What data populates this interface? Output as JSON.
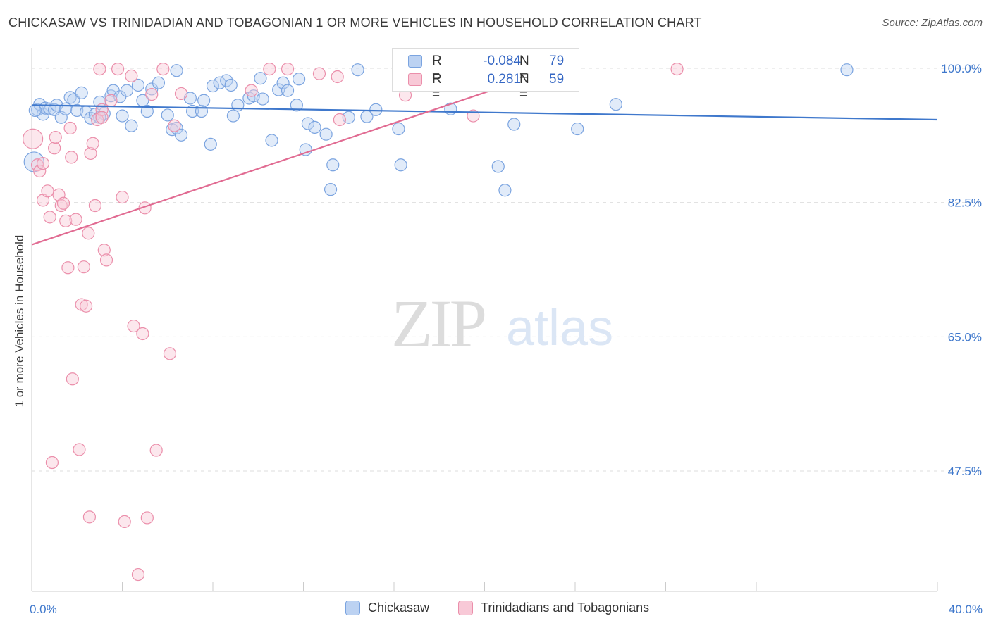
{
  "title": "CHICKASAW VS TRINIDADIAN AND TOBAGONIAN 1 OR MORE VEHICLES IN HOUSEHOLD CORRELATION CHART",
  "source": "Source: ZipAtlas.com",
  "watermark": {
    "zip": "ZIP",
    "atlas": "atlas"
  },
  "legend_stats": [
    {
      "r_label": "R =",
      "r_value": "-0.084",
      "n_label": "N =",
      "n_value": "79",
      "color": "#7ba4e0",
      "fill": "#bcd2f2"
    },
    {
      "r_label": "R =",
      "r_value": "0.281",
      "n_label": "N =",
      "n_value": "59",
      "color": "#eb8fab",
      "fill": "#f8c9d7"
    }
  ],
  "bottom_legend": [
    {
      "label": "Chickasaw",
      "color": "#7ba4e0",
      "fill": "#bcd2f2"
    },
    {
      "label": "Trinidadians and Tobagonians",
      "color": "#eb8fab",
      "fill": "#f8c9d7"
    }
  ],
  "chart_data": {
    "type": "scatter",
    "title": "CHICKASAW VS TRINIDADIAN AND TOBAGONIAN 1 OR MORE VEHICLES IN HOUSEHOLD CORRELATION CHART",
    "xlabel": "",
    "ylabel": "1 or more Vehicles in Household",
    "xlim": [
      0,
      40
    ],
    "ylim": [
      32,
      102.5
    ],
    "x_tick_labels": [
      {
        "value": 0,
        "label": "0.0%"
      },
      {
        "value": 40,
        "label": "40.0%"
      }
    ],
    "y_tick_labels": [
      {
        "value": 100,
        "label": "100.0%"
      },
      {
        "value": 82.5,
        "label": "82.5%"
      },
      {
        "value": 65,
        "label": "65.0%"
      },
      {
        "value": 47.5,
        "label": "47.5%"
      }
    ],
    "series": [
      {
        "name": "Chickasaw",
        "color": "#3f78cc",
        "point_stroke": "#7ba4e0",
        "point_fill": "#bcd2f2",
        "trendline": {
          "x": [
            0,
            40
          ],
          "y": [
            95.2,
            93.3
          ]
        },
        "points": [
          [
            0.1,
            87.8
          ],
          [
            0.25,
            94.6
          ],
          [
            0.35,
            95.3
          ],
          [
            0.5,
            94.0
          ],
          [
            0.6,
            94.8
          ],
          [
            0.8,
            94.7
          ],
          [
            1.0,
            94.6
          ],
          [
            1.1,
            95.2
          ],
          [
            1.3,
            93.6
          ],
          [
            1.5,
            94.7
          ],
          [
            1.7,
            96.2
          ],
          [
            1.85,
            95.9
          ],
          [
            2.0,
            94.5
          ],
          [
            2.2,
            96.8
          ],
          [
            2.4,
            94.3
          ],
          [
            2.6,
            93.5
          ],
          [
            2.8,
            94.0
          ],
          [
            3.0,
            95.6
          ],
          [
            3.2,
            94.1
          ],
          [
            3.5,
            96.4
          ],
          [
            3.6,
            97.1
          ],
          [
            3.9,
            96.3
          ],
          [
            4.0,
            93.8
          ],
          [
            4.2,
            97.1
          ],
          [
            4.4,
            92.5
          ],
          [
            4.7,
            97.8
          ],
          [
            4.9,
            95.8
          ],
          [
            5.1,
            94.4
          ],
          [
            5.3,
            97.3
          ],
          [
            5.6,
            98.1
          ],
          [
            6.0,
            93.9
          ],
          [
            6.2,
            92.0
          ],
          [
            6.4,
            92.2
          ],
          [
            6.6,
            91.3
          ],
          [
            6.4,
            99.7
          ],
          [
            7.0,
            96.1
          ],
          [
            7.1,
            94.4
          ],
          [
            7.5,
            94.4
          ],
          [
            7.6,
            95.8
          ],
          [
            7.9,
            90.1
          ],
          [
            8.0,
            97.7
          ],
          [
            8.3,
            98.1
          ],
          [
            8.6,
            98.4
          ],
          [
            8.8,
            97.8
          ],
          [
            8.9,
            93.8
          ],
          [
            9.1,
            95.2
          ],
          [
            9.6,
            96.1
          ],
          [
            9.8,
            96.4
          ],
          [
            10.1,
            98.7
          ],
          [
            10.6,
            90.6
          ],
          [
            10.9,
            97.2
          ],
          [
            11.1,
            98.1
          ],
          [
            11.3,
            97.1
          ],
          [
            11.7,
            95.2
          ],
          [
            11.8,
            98.6
          ],
          [
            12.1,
            89.4
          ],
          [
            12.2,
            92.8
          ],
          [
            12.5,
            92.3
          ],
          [
            13.0,
            91.4
          ],
          [
            13.3,
            87.4
          ],
          [
            13.2,
            84.2
          ],
          [
            14.0,
            93.6
          ],
          [
            14.4,
            99.8
          ],
          [
            14.8,
            93.7
          ],
          [
            15.2,
            94.6
          ],
          [
            16.2,
            92.1
          ],
          [
            16.3,
            87.4
          ],
          [
            18.1,
            99.8
          ],
          [
            18.5,
            94.7
          ],
          [
            20.6,
            87.2
          ],
          [
            20.9,
            84.1
          ],
          [
            21.3,
            92.7
          ],
          [
            22.3,
            99.8
          ],
          [
            24.1,
            92.1
          ],
          [
            25.8,
            95.3
          ],
          [
            36.0,
            99.8
          ],
          [
            0.15,
            94.5
          ],
          [
            3.0,
            93.6
          ],
          [
            10.2,
            96.0
          ]
        ]
      },
      {
        "name": "Trinidadians and Tobagonians",
        "color": "#e16b92",
        "point_stroke": "#eb8fab",
        "point_fill": "#f8c9d7",
        "trendline": {
          "x": [
            0,
            22.8
          ],
          "y": [
            77.0,
            99.6
          ]
        },
        "points": [
          [
            0.05,
            90.8
          ],
          [
            0.25,
            87.4
          ],
          [
            0.35,
            86.6
          ],
          [
            0.5,
            87.6
          ],
          [
            0.5,
            82.8
          ],
          [
            0.7,
            84.0
          ],
          [
            0.8,
            80.6
          ],
          [
            0.9,
            48.6
          ],
          [
            1.0,
            89.6
          ],
          [
            1.05,
            91.0
          ],
          [
            1.2,
            83.5
          ],
          [
            1.3,
            82.1
          ],
          [
            1.4,
            82.4
          ],
          [
            1.5,
            80.1
          ],
          [
            1.6,
            74.0
          ],
          [
            1.7,
            92.2
          ],
          [
            1.75,
            88.4
          ],
          [
            1.8,
            59.5
          ],
          [
            1.95,
            80.3
          ],
          [
            2.1,
            50.3
          ],
          [
            2.2,
            69.2
          ],
          [
            2.3,
            74.1
          ],
          [
            2.4,
            69.0
          ],
          [
            2.5,
            78.5
          ],
          [
            2.55,
            41.5
          ],
          [
            2.6,
            88.9
          ],
          [
            2.7,
            90.2
          ],
          [
            2.8,
            82.1
          ],
          [
            2.9,
            93.3
          ],
          [
            3.0,
            99.9
          ],
          [
            3.1,
            94.6
          ],
          [
            3.2,
            76.3
          ],
          [
            3.3,
            75.0
          ],
          [
            3.5,
            95.8
          ],
          [
            3.8,
            99.9
          ],
          [
            4.0,
            83.2
          ],
          [
            4.1,
            40.9
          ],
          [
            4.4,
            99.0
          ],
          [
            4.5,
            66.4
          ],
          [
            4.7,
            34.0
          ],
          [
            4.9,
            65.4
          ],
          [
            5.0,
            81.8
          ],
          [
            5.1,
            41.4
          ],
          [
            5.3,
            96.6
          ],
          [
            5.5,
            50.2
          ],
          [
            5.8,
            99.9
          ],
          [
            6.1,
            62.8
          ],
          [
            6.3,
            92.5
          ],
          [
            6.6,
            96.7
          ],
          [
            9.7,
            97.1
          ],
          [
            10.5,
            99.9
          ],
          [
            11.3,
            99.9
          ],
          [
            12.7,
            99.3
          ],
          [
            13.5,
            98.9
          ],
          [
            13.6,
            93.3
          ],
          [
            16.5,
            96.5
          ],
          [
            19.5,
            93.8
          ],
          [
            28.5,
            99.9
          ],
          [
            3.1,
            93.6
          ]
        ]
      }
    ]
  }
}
